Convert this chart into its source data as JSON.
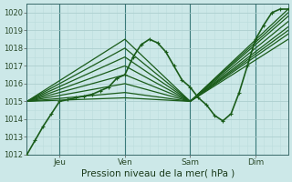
{
  "title": "",
  "xlabel": "Pression niveau de la mer( hPa )",
  "ylabel": "",
  "bg_color": "#cce8e8",
  "grid_color_major": "#aacccc",
  "grid_color_minor": "#bbdddd",
  "line_color": "#1a5c1a",
  "ylim": [
    1012,
    1020.5
  ],
  "xlim": [
    0,
    96
  ],
  "xtick_positions": [
    12,
    36,
    60,
    84
  ],
  "xtick_labels": [
    "Jeu",
    "Ven",
    "Sam",
    "Dim"
  ],
  "ytick_positions": [
    1012,
    1013,
    1014,
    1015,
    1016,
    1017,
    1018,
    1019,
    1020
  ],
  "ytick_labels": [
    "1012",
    "1013",
    "1014",
    "1015",
    "1016",
    "1017",
    "1018",
    "1019",
    "1020"
  ],
  "detailed_series": {
    "x": [
      0,
      3,
      6,
      9,
      12,
      15,
      18,
      21,
      24,
      27,
      30,
      33,
      36,
      39,
      42,
      45,
      48,
      51,
      54,
      57,
      60,
      63,
      66,
      69,
      72,
      75,
      78,
      81,
      84,
      87,
      90,
      93,
      96
    ],
    "y": [
      1012.0,
      1012.8,
      1013.6,
      1014.3,
      1015.0,
      1015.1,
      1015.2,
      1015.3,
      1015.4,
      1015.6,
      1015.8,
      1016.3,
      1016.5,
      1017.5,
      1018.2,
      1018.5,
      1018.3,
      1017.8,
      1017.0,
      1016.2,
      1015.8,
      1015.2,
      1014.8,
      1014.2,
      1013.9,
      1014.3,
      1015.5,
      1017.0,
      1018.5,
      1019.3,
      1020.0,
      1020.2,
      1020.2
    ]
  },
  "straight_lines": [
    {
      "x": [
        0,
        36,
        60,
        96
      ],
      "y": [
        1015.0,
        1018.5,
        1015.0,
        1020.2
      ]
    },
    {
      "x": [
        0,
        36,
        60,
        96
      ],
      "y": [
        1015.0,
        1018.0,
        1015.0,
        1020.0
      ]
    },
    {
      "x": [
        0,
        36,
        60,
        96
      ],
      "y": [
        1015.0,
        1017.5,
        1015.0,
        1019.8
      ]
    },
    {
      "x": [
        0,
        36,
        60,
        96
      ],
      "y": [
        1015.0,
        1017.0,
        1015.0,
        1019.5
      ]
    },
    {
      "x": [
        0,
        36,
        60,
        96
      ],
      "y": [
        1015.0,
        1016.5,
        1015.0,
        1019.2
      ]
    },
    {
      "x": [
        0,
        36,
        60,
        96
      ],
      "y": [
        1015.0,
        1016.0,
        1015.0,
        1019.0
      ]
    },
    {
      "x": [
        0,
        36,
        60,
        96
      ],
      "y": [
        1015.0,
        1015.5,
        1015.0,
        1018.8
      ]
    },
    {
      "x": [
        0,
        36,
        60,
        96
      ],
      "y": [
        1015.0,
        1015.2,
        1015.0,
        1018.5
      ]
    }
  ]
}
